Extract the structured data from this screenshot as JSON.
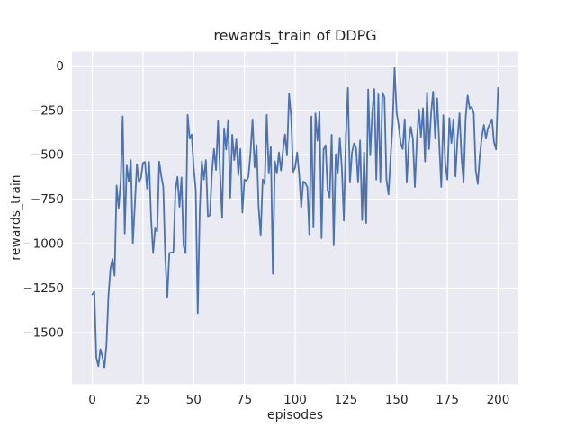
{
  "figure": {
    "title": "rewards_train of DDPG",
    "xlabel": "episodes",
    "ylabel": "rewards_train"
  },
  "chart_data": {
    "type": "line",
    "title": "rewards_train of DDPG",
    "xlabel": "episodes",
    "ylabel": "rewards_train",
    "legend_position": "none",
    "grid": true,
    "style": "seaborn-darkgrid",
    "line_color": "#4c72b0",
    "axes_bg_color": "#eaeaf2",
    "grid_color": "#ffffff",
    "text_color": "#262626",
    "xlim": [
      -10,
      210
    ],
    "ylim": [
      -1790,
      80
    ],
    "xticks": [
      0,
      25,
      50,
      75,
      100,
      125,
      150,
      175,
      200
    ],
    "xtick_labels": [
      "0",
      "25",
      "50",
      "75",
      "100",
      "125",
      "150",
      "175",
      "200"
    ],
    "yticks": [
      0,
      -250,
      -500,
      -750,
      -1000,
      -1250,
      -1500
    ],
    "ytick_labels": [
      "0",
      "−250",
      "−500",
      "−750",
      "−1000",
      "−1250",
      "−1500"
    ],
    "series": [
      {
        "name": "rewards_train",
        "x_start": 0,
        "x_step": 1,
        "y": [
          -1286,
          -1270,
          -1640,
          -1690,
          -1594,
          -1636,
          -1700,
          -1568,
          -1290,
          -1137,
          -1087,
          -1180,
          -673,
          -800,
          -650,
          -284,
          -943,
          -560,
          -650,
          -530,
          -1000,
          -780,
          -554,
          -656,
          -630,
          -546,
          -540,
          -690,
          -540,
          -858,
          -1053,
          -913,
          -930,
          -538,
          -619,
          -680,
          -1078,
          -1305,
          -1053,
          -1050,
          -1050,
          -700,
          -624,
          -793,
          -627,
          -1011,
          -1053,
          -275,
          -409,
          -386,
          -571,
          -700,
          -1391,
          -808,
          -537,
          -639,
          -530,
          -846,
          -840,
          -600,
          -467,
          -585,
          -309,
          -602,
          -855,
          -351,
          -470,
          -304,
          -742,
          -387,
          -530,
          -413,
          -615,
          -467,
          -825,
          -639,
          -647,
          -622,
          -487,
          -301,
          -571,
          -446,
          -795,
          -955,
          -639,
          -664,
          -275,
          -605,
          -455,
          -1170,
          -537,
          -605,
          -487,
          -588,
          -478,
          -385,
          -504,
          -157,
          -280,
          -597,
          -571,
          -487,
          -615,
          -795,
          -650,
          -660,
          -682,
          -952,
          -284,
          -909,
          -267,
          -420,
          -259,
          -969,
          -470,
          -446,
          -699,
          -741,
          -387,
          -1010,
          -497,
          -605,
          -404,
          -571,
          -870,
          -400,
          -123,
          -656,
          -487,
          -436,
          -460,
          -656,
          -419,
          -867,
          -487,
          -884,
          -133,
          -504,
          -259,
          -130,
          -639,
          -160,
          -656,
          -150,
          -176,
          -639,
          -723,
          -520,
          -335,
          -10,
          -263,
          -335,
          -434,
          -468,
          -300,
          -656,
          -434,
          -343,
          -409,
          -681,
          -416,
          -246,
          -400,
          -238,
          -537,
          -149,
          -468,
          -266,
          -144,
          -409,
          -183,
          -434,
          -681,
          -277,
          -554,
          -639,
          -293,
          -434,
          -300,
          -622,
          -409,
          -266,
          -520,
          -656,
          -293,
          -166,
          -240,
          -230,
          -266,
          -588,
          -664,
          -503,
          -400,
          -332,
          -409,
          -350,
          -325,
          -300,
          -430,
          -470,
          -123
        ]
      }
    ]
  }
}
